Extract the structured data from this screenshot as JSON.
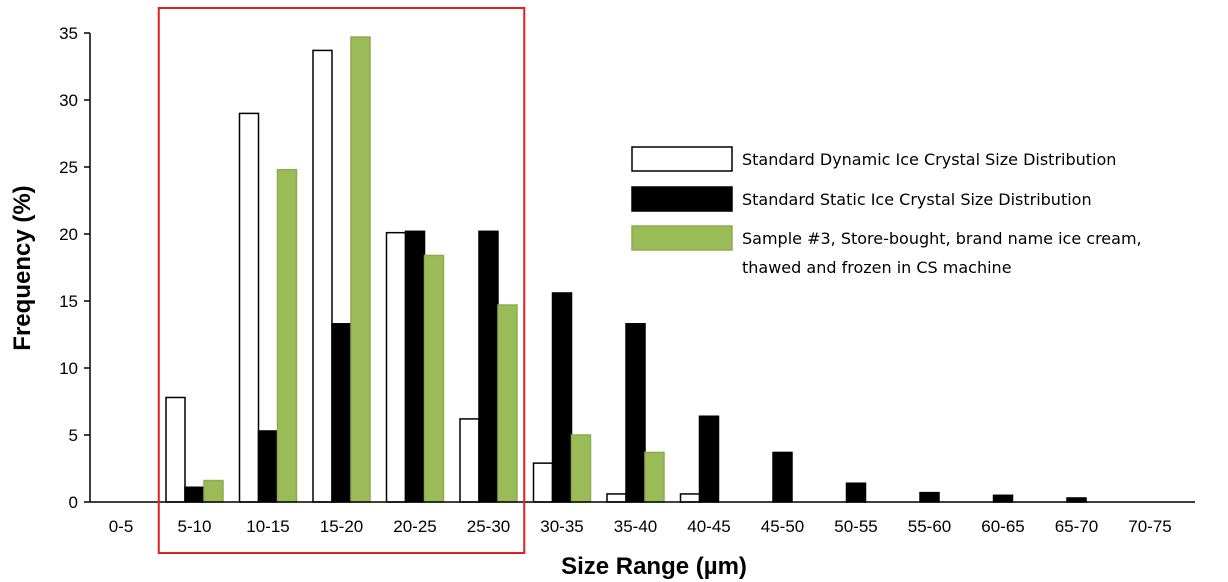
{
  "chart_data": {
    "type": "bar",
    "title": "",
    "xlabel": "Size Range (µm)",
    "ylabel": "Frequency (%)",
    "ylim": [
      0,
      35
    ],
    "yticks": [
      0,
      5,
      10,
      15,
      20,
      25,
      30,
      35
    ],
    "grid": false,
    "legend_position": "right",
    "categories": [
      "0-5",
      "5-10",
      "10-15",
      "15-20",
      "20-25",
      "25-30",
      "30-35",
      "35-40",
      "40-45",
      "45-50",
      "50-55",
      "55-60",
      "60-65",
      "65-70",
      "70-75"
    ],
    "series": [
      {
        "name": "Standard Dynamic Ice Crystal Size Distribution",
        "fill": "#ffffff",
        "stroke": "#000000",
        "values": [
          0,
          7.8,
          29.0,
          33.7,
          20.1,
          6.2,
          2.9,
          0.6,
          0.6,
          0,
          0,
          0,
          0,
          0,
          0
        ]
      },
      {
        "name": "Standard Static Ice Crystal Size Distribution",
        "fill": "#000000",
        "stroke": "#000000",
        "values": [
          0,
          1.1,
          5.3,
          13.3,
          20.2,
          20.2,
          15.6,
          13.3,
          6.4,
          3.7,
          1.4,
          0.7,
          0.5,
          0.3,
          0
        ]
      },
      {
        "name": "Sample #3, Store-bought, brand name ice cream, thawed and frozen in CS machine",
        "legend_lines": [
          "Sample #3, Store-bought, brand name ice cream,",
          "thawed and frozen in CS machine"
        ],
        "fill": "#9bbb59",
        "stroke": "#8aad4a",
        "values": [
          0,
          1.6,
          24.8,
          34.7,
          18.4,
          14.7,
          5.0,
          3.7,
          0,
          0,
          0,
          0,
          0,
          0,
          0
        ]
      }
    ],
    "highlight": {
      "from_category": "5-10",
      "to_category": "25-30",
      "color": "#e02020"
    }
  }
}
